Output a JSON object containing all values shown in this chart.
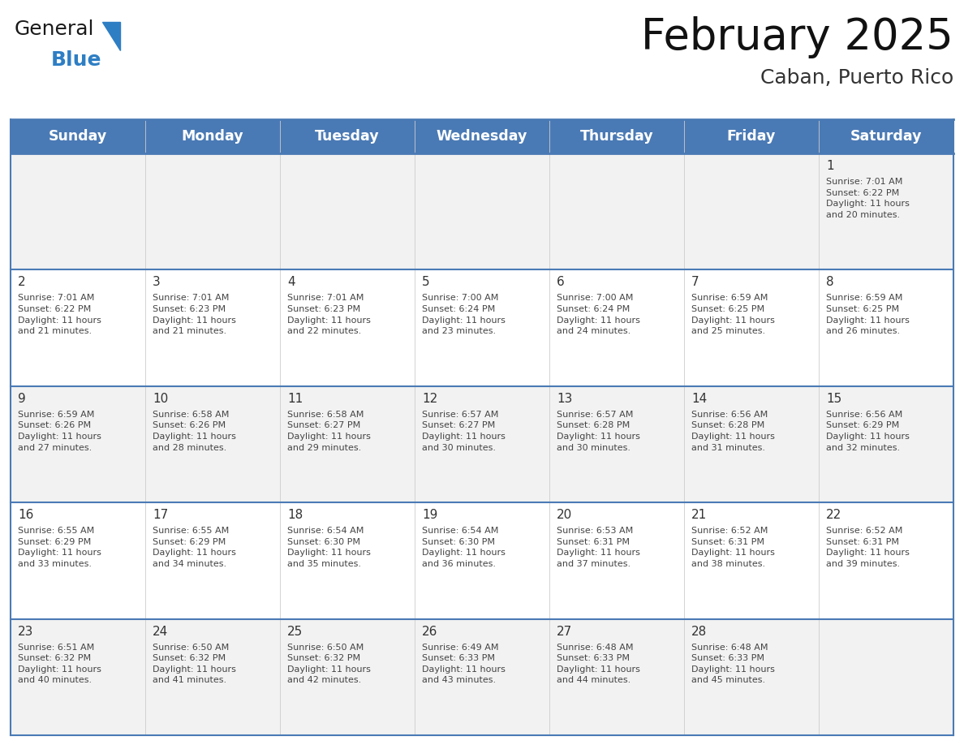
{
  "title": "February 2025",
  "subtitle": "Caban, Puerto Rico",
  "header_bg": "#4a7ab5",
  "header_text_color": "#ffffff",
  "days_of_week": [
    "Sunday",
    "Monday",
    "Tuesday",
    "Wednesday",
    "Thursday",
    "Friday",
    "Saturday"
  ],
  "cell_bg_even": "#f2f2f2",
  "cell_bg_odd": "#ffffff",
  "border_color": "#4a7ab5",
  "text_color": "#444444",
  "day_num_color": "#333333",
  "logo_general_color": "#1a1a1a",
  "logo_blue_color": "#2e7ec4",
  "calendar_data": [
    [
      null,
      null,
      null,
      null,
      null,
      null,
      {
        "day": 1,
        "sunrise": "7:01 AM",
        "sunset": "6:22 PM",
        "daylight": "11 hours and 20 minutes."
      }
    ],
    [
      {
        "day": 2,
        "sunrise": "7:01 AM",
        "sunset": "6:22 PM",
        "daylight": "11 hours and 21 minutes."
      },
      {
        "day": 3,
        "sunrise": "7:01 AM",
        "sunset": "6:23 PM",
        "daylight": "11 hours and 21 minutes."
      },
      {
        "day": 4,
        "sunrise": "7:01 AM",
        "sunset": "6:23 PM",
        "daylight": "11 hours and 22 minutes."
      },
      {
        "day": 5,
        "sunrise": "7:00 AM",
        "sunset": "6:24 PM",
        "daylight": "11 hours and 23 minutes."
      },
      {
        "day": 6,
        "sunrise": "7:00 AM",
        "sunset": "6:24 PM",
        "daylight": "11 hours and 24 minutes."
      },
      {
        "day": 7,
        "sunrise": "6:59 AM",
        "sunset": "6:25 PM",
        "daylight": "11 hours and 25 minutes."
      },
      {
        "day": 8,
        "sunrise": "6:59 AM",
        "sunset": "6:25 PM",
        "daylight": "11 hours and 26 minutes."
      }
    ],
    [
      {
        "day": 9,
        "sunrise": "6:59 AM",
        "sunset": "6:26 PM",
        "daylight": "11 hours and 27 minutes."
      },
      {
        "day": 10,
        "sunrise": "6:58 AM",
        "sunset": "6:26 PM",
        "daylight": "11 hours and 28 minutes."
      },
      {
        "day": 11,
        "sunrise": "6:58 AM",
        "sunset": "6:27 PM",
        "daylight": "11 hours and 29 minutes."
      },
      {
        "day": 12,
        "sunrise": "6:57 AM",
        "sunset": "6:27 PM",
        "daylight": "11 hours and 30 minutes."
      },
      {
        "day": 13,
        "sunrise": "6:57 AM",
        "sunset": "6:28 PM",
        "daylight": "11 hours and 30 minutes."
      },
      {
        "day": 14,
        "sunrise": "6:56 AM",
        "sunset": "6:28 PM",
        "daylight": "11 hours and 31 minutes."
      },
      {
        "day": 15,
        "sunrise": "6:56 AM",
        "sunset": "6:29 PM",
        "daylight": "11 hours and 32 minutes."
      }
    ],
    [
      {
        "day": 16,
        "sunrise": "6:55 AM",
        "sunset": "6:29 PM",
        "daylight": "11 hours and 33 minutes."
      },
      {
        "day": 17,
        "sunrise": "6:55 AM",
        "sunset": "6:29 PM",
        "daylight": "11 hours and 34 minutes."
      },
      {
        "day": 18,
        "sunrise": "6:54 AM",
        "sunset": "6:30 PM",
        "daylight": "11 hours and 35 minutes."
      },
      {
        "day": 19,
        "sunrise": "6:54 AM",
        "sunset": "6:30 PM",
        "daylight": "11 hours and 36 minutes."
      },
      {
        "day": 20,
        "sunrise": "6:53 AM",
        "sunset": "6:31 PM",
        "daylight": "11 hours and 37 minutes."
      },
      {
        "day": 21,
        "sunrise": "6:52 AM",
        "sunset": "6:31 PM",
        "daylight": "11 hours and 38 minutes."
      },
      {
        "day": 22,
        "sunrise": "6:52 AM",
        "sunset": "6:31 PM",
        "daylight": "11 hours and 39 minutes."
      }
    ],
    [
      {
        "day": 23,
        "sunrise": "6:51 AM",
        "sunset": "6:32 PM",
        "daylight": "11 hours and 40 minutes."
      },
      {
        "day": 24,
        "sunrise": "6:50 AM",
        "sunset": "6:32 PM",
        "daylight": "11 hours and 41 minutes."
      },
      {
        "day": 25,
        "sunrise": "6:50 AM",
        "sunset": "6:32 PM",
        "daylight": "11 hours and 42 minutes."
      },
      {
        "day": 26,
        "sunrise": "6:49 AM",
        "sunset": "6:33 PM",
        "daylight": "11 hours and 43 minutes."
      },
      {
        "day": 27,
        "sunrise": "6:48 AM",
        "sunset": "6:33 PM",
        "daylight": "11 hours and 44 minutes."
      },
      {
        "day": 28,
        "sunrise": "6:48 AM",
        "sunset": "6:33 PM",
        "daylight": "11 hours and 45 minutes."
      },
      null
    ]
  ]
}
